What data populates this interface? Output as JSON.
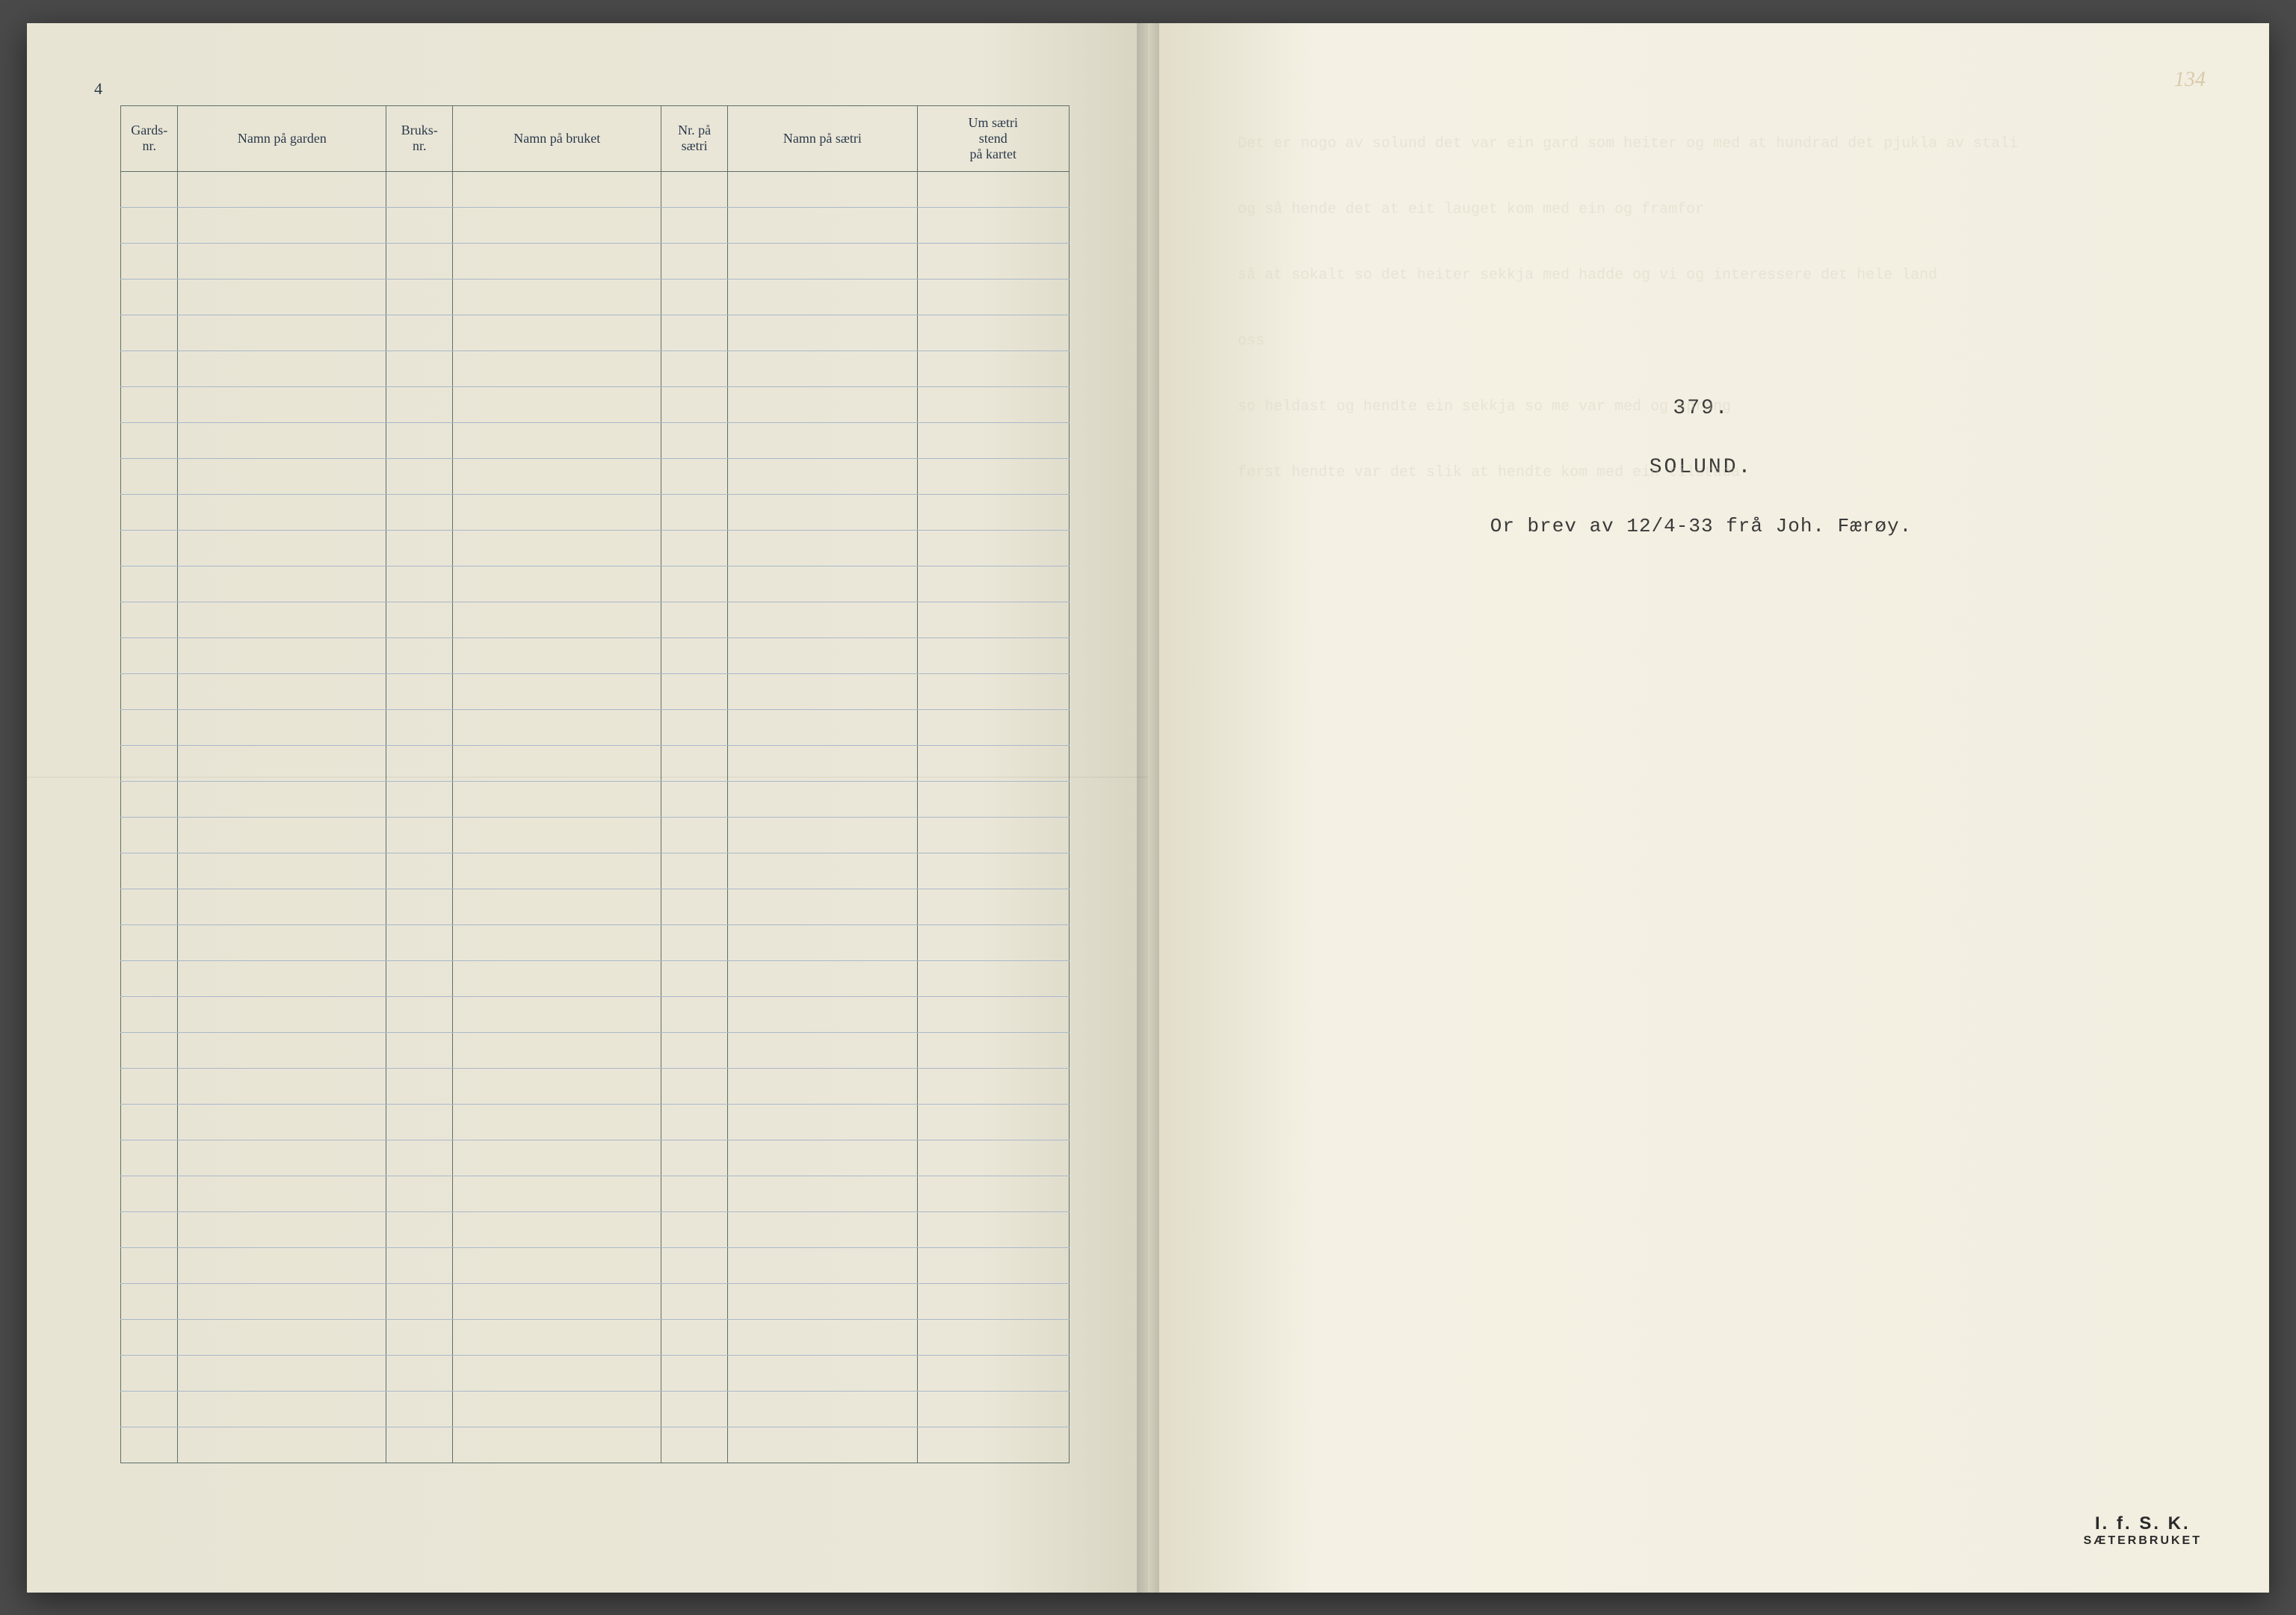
{
  "leftPage": {
    "pageNumber": "4",
    "table": {
      "headers": {
        "gardsnr": "Gards-\nnr.",
        "garden": "Namn på garden",
        "bruksnr": "Bruks-\nnr.",
        "bruket": "Namn på bruket",
        "saetrinr": "Nr. på\nsætri",
        "saetri": "Namn på sætri",
        "kartet": "Um sætri\nstend\npå kartet"
      },
      "rowCount": 36,
      "fadedEntries": [
        {
          "row": 0,
          "col": 1,
          "text": ""
        },
        {
          "row": 1,
          "col": 1,
          "text": ""
        },
        {
          "row": 2,
          "col": 1,
          "text": ""
        },
        {
          "row": 3,
          "col": 1,
          "text": ""
        },
        {
          "row": 4,
          "col": 1,
          "text": ""
        }
      ]
    }
  },
  "rightPage": {
    "pageNumber": "134",
    "docNumber": "379.",
    "docTitle": "SOLUND.",
    "docSubtitle": "Or brev av 12/4-33 frå Joh. Færøy.",
    "stamp": {
      "top": "I. f. S. K.",
      "bottom": "SÆTERBRUKET"
    }
  },
  "colors": {
    "pageLeft": "#e8e4d4",
    "pageRight": "#f2eee0",
    "tableBorder": "#5a7068",
    "rowLine": "#a8b8c8",
    "headerText": "#2a3a4a",
    "typewriterText": "#3a3a3a",
    "stampText": "#2a2a2a"
  }
}
